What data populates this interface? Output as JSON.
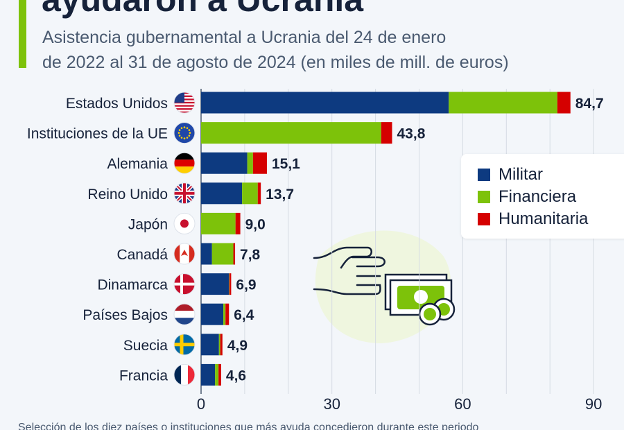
{
  "header": {
    "title": "ayudaron a Ucrania",
    "subtitle_line1": "Asistencia gubernamental a Ucrania del 24 de enero",
    "subtitle_line2": "de 2022 al 31 de agosto de 2024 (en miles de mill. de euros)"
  },
  "footer": {
    "note": "Selección de los diez países o instituciones que más ayuda concedieron durante este periodo"
  },
  "colors": {
    "Militar": "#0d3a80",
    "Financiera": "#7dc20a",
    "Humanitaria": "#d50000",
    "accent": "#7dc20a",
    "text": "#16223a"
  },
  "illustration": "hand-giving-money-icon",
  "chart_data": {
    "type": "bar",
    "orientation": "horizontal",
    "stacked": true,
    "categories": [
      "Estados Unidos",
      "Instituciones de la UE",
      "Alemania",
      "Reino Unido",
      "Japón",
      "Canadá",
      "Dinamarca",
      "Países Bajos",
      "Suecia",
      "Francia"
    ],
    "flags": [
      "us",
      "eu",
      "de",
      "gb",
      "jp",
      "ca",
      "dk",
      "nl",
      "se",
      "fr"
    ],
    "series": [
      {
        "name": "Militar",
        "values": [
          56.8,
          0,
          10.6,
          9.4,
          0,
          2.5,
          6.4,
          5.1,
          4.1,
          3.2
        ]
      },
      {
        "name": "Financiera",
        "values": [
          24.9,
          41.3,
          1.3,
          3.6,
          7.9,
          4.9,
          0.1,
          0.5,
          0.3,
          0.8
        ]
      },
      {
        "name": "Humanitaria",
        "values": [
          3.0,
          2.5,
          3.2,
          0.7,
          1.1,
          0.4,
          0.4,
          0.8,
          0.5,
          0.6
        ]
      }
    ],
    "totals": [
      "84,7",
      "43,8",
      "15,1",
      "13,7",
      "9,0",
      "7,8",
      "6,9",
      "6,4",
      "4,9",
      "4,6"
    ],
    "xlim": [
      0,
      95
    ],
    "xticks": [
      "0",
      "30",
      "60",
      "90"
    ],
    "xtick_values": [
      0,
      30,
      60,
      90
    ],
    "grid": true,
    "legend_position": "right"
  }
}
